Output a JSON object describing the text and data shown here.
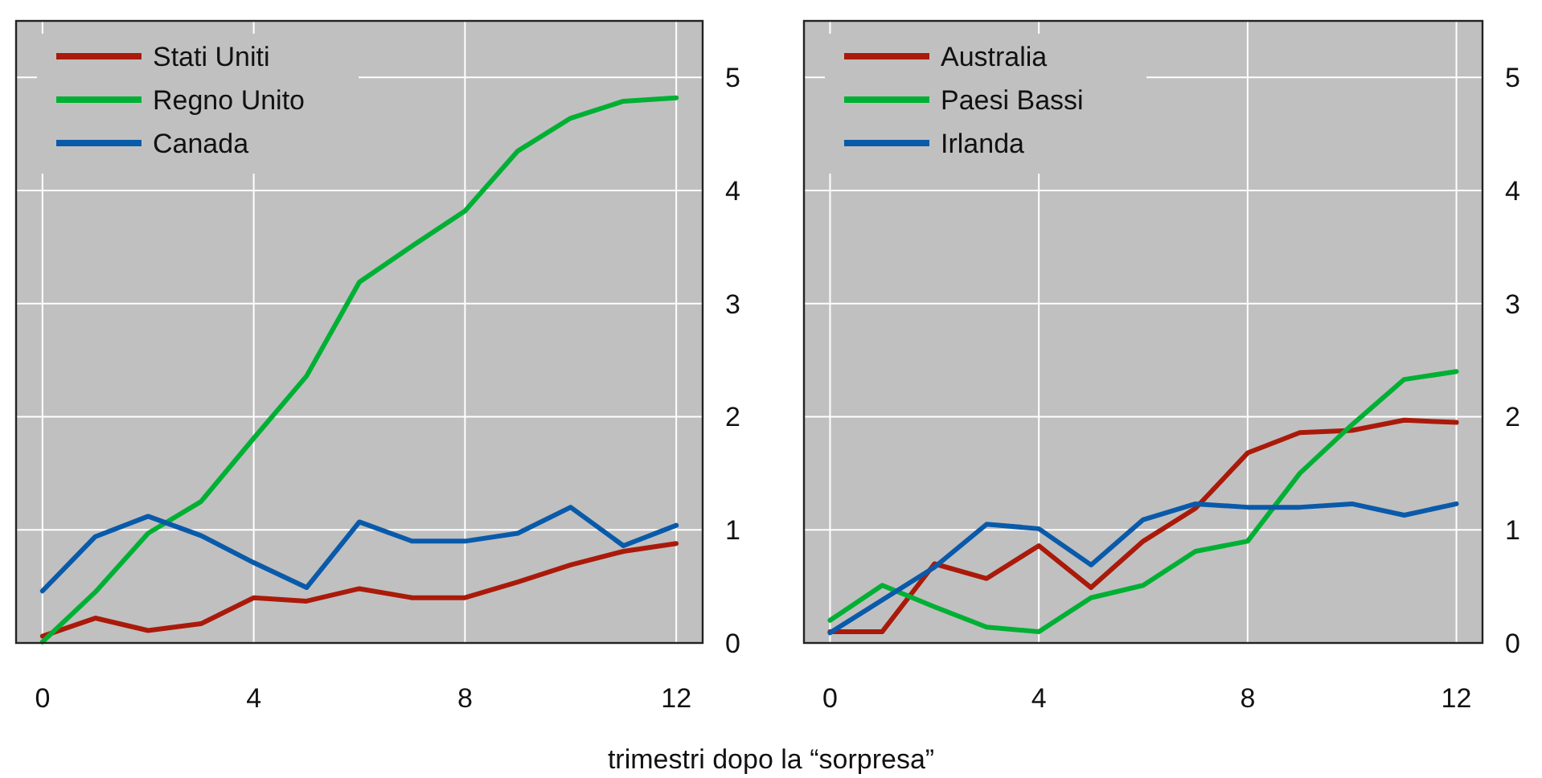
{
  "chart_data": [
    {
      "type": "line",
      "xlabel": "trimestri dopo la “sorpresa”",
      "x": [
        0,
        1,
        2,
        3,
        4,
        5,
        6,
        7,
        8,
        9,
        10,
        11,
        12
      ],
      "xlim": [
        -0.5,
        12.5
      ],
      "xticks": [
        0,
        4,
        8,
        12
      ],
      "ylim": [
        0,
        5.5
      ],
      "yticks": [
        0,
        1,
        2,
        3,
        4,
        5
      ],
      "grid": true,
      "legend": "top left",
      "series": [
        {
          "name": "Stati Uniti",
          "color": "#aa1a0a",
          "values": [
            0.06,
            0.22,
            0.11,
            0.17,
            0.4,
            0.37,
            0.48,
            0.4,
            0.4,
            0.54,
            0.69,
            0.81,
            0.88
          ]
        },
        {
          "name": "Regno Unito",
          "color": "#00b034",
          "values": [
            0.01,
            0.45,
            0.97,
            1.25,
            1.81,
            2.36,
            3.19,
            3.51,
            3.82,
            4.35,
            4.64,
            4.79,
            4.82
          ]
        },
        {
          "name": "Canada",
          "color": "#0a5aaa",
          "values": [
            0.46,
            0.94,
            1.12,
            0.95,
            0.71,
            0.49,
            1.07,
            0.9,
            0.9,
            0.97,
            1.2,
            0.86,
            1.04
          ]
        }
      ]
    },
    {
      "type": "line",
      "x": [
        0,
        1,
        2,
        3,
        4,
        5,
        6,
        7,
        8,
        9,
        10,
        11,
        12
      ],
      "xlim": [
        -0.5,
        12.5
      ],
      "xticks": [
        0,
        4,
        8,
        12
      ],
      "ylim": [
        0,
        5.5
      ],
      "yticks": [
        0,
        1,
        2,
        3,
        4,
        5
      ],
      "grid": true,
      "legend": "top left",
      "series": [
        {
          "name": "Australia",
          "color": "#aa1a0a",
          "values": [
            0.1,
            0.1,
            0.7,
            0.57,
            0.86,
            0.49,
            0.9,
            1.19,
            1.68,
            1.86,
            1.88,
            1.97,
            1.95
          ]
        },
        {
          "name": "Paesi Bassi",
          "color": "#00b034",
          "values": [
            0.2,
            0.51,
            0.32,
            0.14,
            0.1,
            0.4,
            0.51,
            0.81,
            0.9,
            1.5,
            1.93,
            2.33,
            2.4
          ]
        },
        {
          "name": "Irlanda",
          "color": "#0a5aaa",
          "values": [
            0.09,
            0.38,
            0.67,
            1.05,
            1.01,
            0.69,
            1.09,
            1.23,
            1.2,
            1.2,
            1.23,
            1.13,
            1.23
          ]
        }
      ]
    }
  ]
}
